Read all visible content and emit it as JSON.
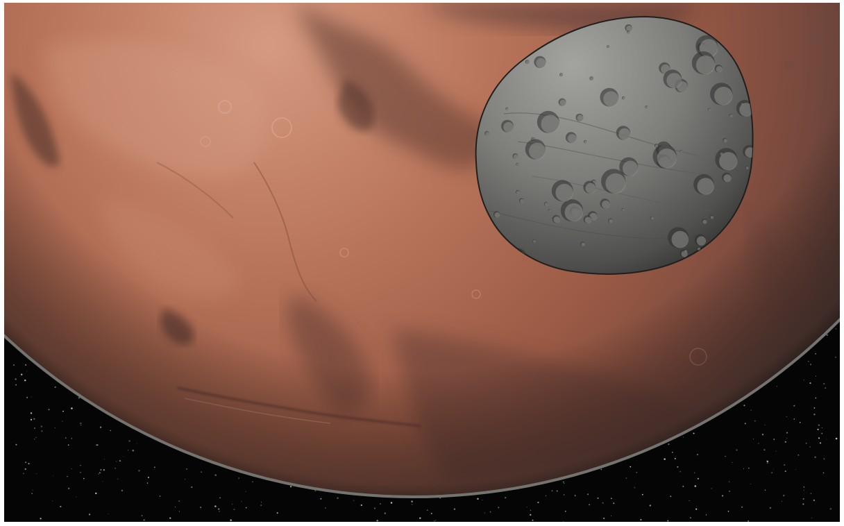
{
  "scene": {
    "kind": "space-render",
    "subjects": [
      "planet",
      "moon",
      "starfield"
    ],
    "colors": {
      "space": "#050505",
      "planet_light": "#c98a6e",
      "planet_mid": "#a8644b",
      "planet_dark": "#5e3a32",
      "planet_rim": "#8f8f8c",
      "moon_light": "#9a9a96",
      "moon_mid": "#6e6e6b",
      "moon_dark": "#2e2e2d",
      "star": "#dcdcdc"
    }
  }
}
